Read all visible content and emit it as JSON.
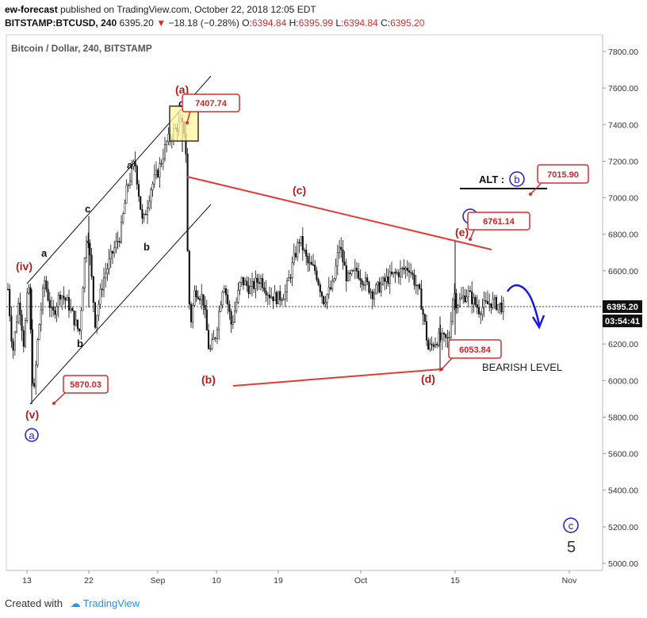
{
  "header": {
    "author": "ew-forecast",
    "published": "published on TradingView.com, October 22, 2018 12:05 EDT",
    "symbol": "BITSTAMP:BTCUSD, 240",
    "last": "6395.20",
    "change_arrow": "▼",
    "change": "−18.18 (−0.28%)",
    "o_label": "O:",
    "o": "6394.84",
    "h_label": "H:",
    "h": "6395.99",
    "l_label": "L:",
    "l": "6394.84",
    "c_label": "C:",
    "c": "6395.20"
  },
  "footer": {
    "created": "Created with",
    "brand": "TradingView"
  },
  "colors": {
    "red": "#d32f2f",
    "blue": "#1a1adb",
    "candle": "#111111",
    "highlight": "#fff59d"
  },
  "chart_data": {
    "type": "candlestick",
    "title": "Bitcoin / Dollar, 240, BITSTAMP",
    "ylim": [
      4900,
      7900
    ],
    "y_ticks": [
      "7800.00",
      "7600.00",
      "7400.00",
      "7200.00",
      "7000.00",
      "6800.00",
      "6600.00",
      "6400.00",
      "6200.00",
      "6000.00",
      "5800.00",
      "5600.00",
      "5400.00",
      "5200.00",
      "5000.00"
    ],
    "x_ticks": [
      "13",
      "22",
      "Sep",
      "10",
      "19",
      "Oct",
      "15",
      "Nov"
    ],
    "last_price_label": "6395.20",
    "countdown_label": "03:54:41",
    "price_callouts": [
      {
        "text": "7407.74"
      },
      {
        "text": "5870.03"
      },
      {
        "text": "6053.84"
      },
      {
        "text": "6761.14"
      },
      {
        "text": "7015.90"
      }
    ],
    "wave_labels": [
      "(a)",
      "(b)",
      "(c)",
      "(d)",
      "(e)",
      "(iv)",
      "(v)",
      "a",
      "b",
      "c",
      "a",
      "b",
      "c",
      "5"
    ],
    "circled_labels": [
      "a",
      "b",
      "b",
      "c"
    ],
    "alt_label": "ALT :",
    "bearish_label": "BEARISH LEVEL"
  }
}
